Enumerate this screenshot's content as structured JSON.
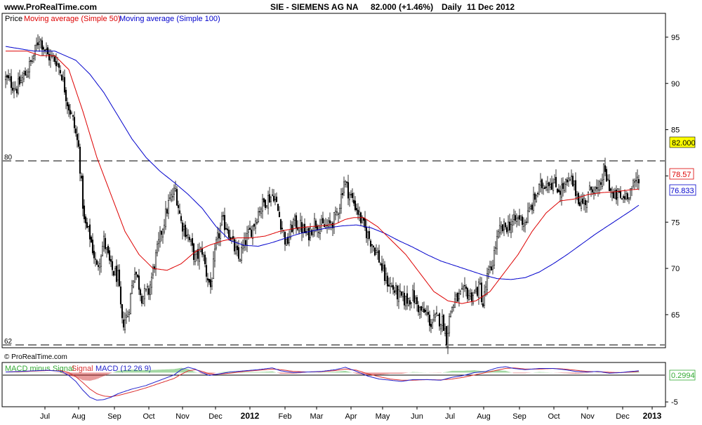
{
  "header": {
    "site": "www.ProRealTime.com",
    "instrument": "SIE - SIEMENS AG NA",
    "price_change": "82.000 (+1.46%)",
    "period": "Daily",
    "date": "11 Dec 2012"
  },
  "watermark": "© ProRealTime.com",
  "colors": {
    "candle": "#000000",
    "ma50": "#dd0000",
    "ma100": "#0000cc",
    "macd_signal": "#dd3333",
    "macd_line": "#2222cc",
    "hist_pos": "#33aa33",
    "hist_neg": "#cc2222",
    "frame": "#000000"
  },
  "chart_data": [
    {
      "type": "candlestick",
      "legend": [
        {
          "label": "Price",
          "color": "#000000"
        },
        {
          "label": "Moving average (Simple 50)",
          "color": "#dd0000"
        },
        {
          "label": "Moving average (Simple 100)",
          "color": "#0000cc"
        }
      ],
      "x_labels": [
        "Jul",
        "Aug",
        "Sep",
        "Oct",
        "Nov",
        "Dec",
        "2012",
        "Feb",
        "Mar",
        "Apr",
        "May",
        "Jun",
        "Jul",
        "Aug",
        "Sep",
        "Oct",
        "Nov",
        "Dec",
        "2013"
      ],
      "y_ticks": [
        65,
        70,
        75,
        80,
        85,
        90,
        95
      ],
      "ylim": [
        61.5,
        97.5
      ],
      "reference_lines": [
        {
          "value": 80,
          "label": "80"
        },
        {
          "value": 62,
          "label": "62"
        }
      ],
      "last_values": {
        "price": "82.000",
        "ma50": "78.57",
        "ma100": "76.833"
      },
      "price_anchors": [
        [
          0,
          90.5
        ],
        [
          8,
          89.5
        ],
        [
          14,
          91
        ],
        [
          19,
          92.5
        ],
        [
          24,
          95
        ],
        [
          30,
          93
        ],
        [
          36,
          92.5
        ],
        [
          40,
          91
        ],
        [
          44,
          88
        ],
        [
          48,
          86
        ],
        [
          52,
          83
        ],
        [
          56,
          75
        ],
        [
          60,
          73.5
        ],
        [
          65,
          70
        ],
        [
          70,
          73
        ],
        [
          75,
          70
        ],
        [
          80,
          69
        ],
        [
          83,
          64
        ],
        [
          87,
          65
        ],
        [
          92,
          70
        ],
        [
          97,
          67
        ],
        [
          102,
          67.5
        ],
        [
          106,
          70.5
        ],
        [
          111,
          74
        ],
        [
          116,
          77
        ],
        [
          121,
          78.5
        ],
        [
          125,
          75
        ],
        [
          130,
          73.5
        ],
        [
          135,
          71
        ],
        [
          140,
          72
        ],
        [
          143,
          69.5
        ],
        [
          146,
          68
        ],
        [
          150,
          72.5
        ],
        [
          154,
          75
        ],
        [
          158,
          74.5
        ],
        [
          162,
          72.5
        ],
        [
          166,
          71
        ],
        [
          171,
          73
        ],
        [
          176,
          74.5
        ],
        [
          181,
          76.5
        ],
        [
          186,
          77.5
        ],
        [
          191,
          78
        ],
        [
          196,
          75
        ],
        [
          200,
          72.5
        ],
        [
          205,
          75
        ],
        [
          210,
          74.5
        ],
        [
          215,
          73.5
        ],
        [
          220,
          75
        ],
        [
          225,
          74.5
        ],
        [
          230,
          74.5
        ],
        [
          235,
          75.5
        ],
        [
          238,
          77
        ],
        [
          241,
          79.5
        ],
        [
          245,
          78
        ],
        [
          250,
          76.5
        ],
        [
          255,
          74.5
        ],
        [
          260,
          73
        ],
        [
          265,
          71.5
        ],
        [
          270,
          69
        ],
        [
          275,
          68
        ],
        [
          280,
          67
        ],
        [
          285,
          66.5
        ],
        [
          290,
          67
        ],
        [
          295,
          65.5
        ],
        [
          300,
          65
        ],
        [
          303,
          64
        ],
        [
          306,
          64.5
        ],
        [
          310,
          64.5
        ],
        [
          312,
          64
        ],
        [
          314,
          62.5
        ],
        [
          317,
          65.5
        ],
        [
          320,
          66.5
        ],
        [
          324,
          67
        ],
        [
          328,
          67.5
        ],
        [
          331,
          67
        ],
        [
          335,
          67.5
        ],
        [
          338,
          68
        ],
        [
          340,
          66
        ],
        [
          343,
          69
        ],
        [
          346,
          70
        ],
        [
          349,
          72.5
        ],
        [
          352,
          74
        ],
        [
          356,
          74.5
        ],
        [
          362,
          75
        ],
        [
          366,
          75.5
        ],
        [
          370,
          75
        ],
        [
          374,
          76.5
        ],
        [
          378,
          78
        ],
        [
          382,
          79
        ],
        [
          387,
          79.5
        ],
        [
          391,
          79
        ],
        [
          395,
          78.5
        ],
        [
          399,
          79
        ],
        [
          403,
          79.5
        ],
        [
          407,
          78
        ],
        [
          410,
          77
        ],
        [
          414,
          77.5
        ],
        [
          418,
          79
        ],
        [
          422,
          78
        ],
        [
          426,
          80.5
        ],
        [
          430,
          79
        ],
        [
          433,
          77.5
        ],
        [
          436,
          78
        ],
        [
          439,
          77.5
        ],
        [
          442,
          78
        ],
        [
          445,
          78.5
        ],
        [
          448,
          79
        ],
        [
          451,
          80
        ],
        [
          454,
          81.5
        ]
      ],
      "ma50_anchors": [
        [
          0,
          93.5
        ],
        [
          15,
          93.5
        ],
        [
          25,
          93
        ],
        [
          35,
          93
        ],
        [
          45,
          91.5
        ],
        [
          55,
          87
        ],
        [
          65,
          82
        ],
        [
          75,
          78
        ],
        [
          85,
          74
        ],
        [
          95,
          71.5
        ],
        [
          105,
          70
        ],
        [
          115,
          69.8
        ],
        [
          125,
          70.5
        ],
        [
          135,
          71.8
        ],
        [
          145,
          72.5
        ],
        [
          155,
          73
        ],
        [
          165,
          73.3
        ],
        [
          175,
          73.3
        ],
        [
          185,
          73.5
        ],
        [
          195,
          74
        ],
        [
          205,
          74.3
        ],
        [
          215,
          74.5
        ],
        [
          225,
          74.6
        ],
        [
          235,
          74.8
        ],
        [
          242,
          75.3
        ],
        [
          248,
          75.5
        ],
        [
          255,
          75.5
        ],
        [
          265,
          74.5
        ],
        [
          275,
          73
        ],
        [
          285,
          71.5
        ],
        [
          295,
          69.5
        ],
        [
          305,
          67.5
        ],
        [
          315,
          66.5
        ],
        [
          325,
          66.2
        ],
        [
          335,
          66.5
        ],
        [
          345,
          67.5
        ],
        [
          355,
          69.5
        ],
        [
          365,
          71.5
        ],
        [
          375,
          74
        ],
        [
          385,
          76
        ],
        [
          395,
          77.3
        ],
        [
          405,
          77.5
        ],
        [
          415,
          78
        ],
        [
          425,
          78.2
        ],
        [
          435,
          78.3
        ],
        [
          445,
          78.5
        ],
        [
          451,
          78.57
        ]
      ],
      "ma100_anchors": [
        [
          0,
          94
        ],
        [
          20,
          93.5
        ],
        [
          35,
          93.5
        ],
        [
          50,
          92.5
        ],
        [
          60,
          91
        ],
        [
          70,
          89
        ],
        [
          80,
          86.5
        ],
        [
          90,
          84
        ],
        [
          100,
          82
        ],
        [
          110,
          80.5
        ],
        [
          120,
          79.3
        ],
        [
          130,
          78
        ],
        [
          140,
          76.5
        ],
        [
          150,
          74.5
        ],
        [
          160,
          73
        ],
        [
          170,
          72.5
        ],
        [
          180,
          72.4
        ],
        [
          190,
          72.8
        ],
        [
          200,
          73.3
        ],
        [
          210,
          73.8
        ],
        [
          220,
          74.1
        ],
        [
          230,
          74.4
        ],
        [
          240,
          74.6
        ],
        [
          250,
          74.7
        ],
        [
          260,
          74.4
        ],
        [
          270,
          73.8
        ],
        [
          280,
          73
        ],
        [
          290,
          72.3
        ],
        [
          300,
          71.5
        ],
        [
          310,
          70.8
        ],
        [
          320,
          70.3
        ],
        [
          330,
          69.8
        ],
        [
          340,
          69.3
        ],
        [
          350,
          68.9
        ],
        [
          360,
          68.8
        ],
        [
          370,
          69
        ],
        [
          380,
          69.6
        ],
        [
          390,
          70.5
        ],
        [
          400,
          71.5
        ],
        [
          410,
          72.6
        ],
        [
          420,
          73.7
        ],
        [
          430,
          74.7
        ],
        [
          440,
          75.7
        ],
        [
          445,
          76.2
        ],
        [
          451,
          76.833
        ]
      ]
    },
    {
      "type": "macd",
      "legend": [
        {
          "label": "MACD minus Signal",
          "color": "#33aa33"
        },
        {
          "label": "Signal",
          "color": "#dd3333"
        },
        {
          "label": "MACD (12 26 9)",
          "color": "#2222cc"
        }
      ],
      "y_ticks": [
        -5
      ],
      "ylim": [
        -5.7,
        1.6
      ],
      "last_value": "0.2994",
      "macd_anchors": [
        [
          0,
          0.1
        ],
        [
          10,
          0.2
        ],
        [
          20,
          0.3
        ],
        [
          30,
          0.4
        ],
        [
          40,
          0.2
        ],
        [
          45,
          -0.5
        ],
        [
          50,
          -1.5
        ],
        [
          55,
          -3
        ],
        [
          60,
          -4.2
        ],
        [
          65,
          -4.7
        ],
        [
          70,
          -4.6
        ],
        [
          75,
          -4.2
        ],
        [
          80,
          -3.6
        ],
        [
          90,
          -2.8
        ],
        [
          100,
          -2.2
        ],
        [
          110,
          -1.3
        ],
        [
          120,
          -0.4
        ],
        [
          125,
          0.5
        ],
        [
          130,
          0.9
        ],
        [
          135,
          0.6
        ],
        [
          140,
          0
        ],
        [
          145,
          -0.5
        ],
        [
          150,
          -0.3
        ],
        [
          160,
          0.1
        ],
        [
          170,
          0.3
        ],
        [
          180,
          0.5
        ],
        [
          190,
          0.8
        ],
        [
          196,
          0.3
        ],
        [
          205,
          0
        ],
        [
          215,
          0.1
        ],
        [
          225,
          0.2
        ],
        [
          235,
          0.5
        ],
        [
          242,
          0.9
        ],
        [
          250,
          0.2
        ],
        [
          258,
          -0.6
        ],
        [
          266,
          -1.1
        ],
        [
          274,
          -1.3
        ],
        [
          282,
          -1.5
        ],
        [
          290,
          -1.2
        ],
        [
          300,
          -1.2
        ],
        [
          310,
          -1.3
        ],
        [
          318,
          -0.8
        ],
        [
          326,
          -0.5
        ],
        [
          334,
          0
        ],
        [
          342,
          0.2
        ],
        [
          350,
          0.8
        ],
        [
          356,
          1
        ],
        [
          362,
          0.7
        ],
        [
          370,
          0.5
        ],
        [
          380,
          0.7
        ],
        [
          390,
          0.7
        ],
        [
          398,
          0.5
        ],
        [
          406,
          0.2
        ],
        [
          414,
          0.1
        ],
        [
          422,
          0.2
        ],
        [
          430,
          -0.1
        ],
        [
          438,
          0
        ],
        [
          446,
          0.2
        ],
        [
          451,
          0.3
        ]
      ],
      "signal_anchors": [
        [
          0,
          0.1
        ],
        [
          10,
          0.15
        ],
        [
          20,
          0.25
        ],
        [
          30,
          0.35
        ],
        [
          40,
          0.3
        ],
        [
          45,
          0
        ],
        [
          50,
          -0.7
        ],
        [
          55,
          -1.7
        ],
        [
          60,
          -2.8
        ],
        [
          65,
          -3.6
        ],
        [
          70,
          -4
        ],
        [
          75,
          -4.1
        ],
        [
          80,
          -3.9
        ],
        [
          90,
          -3.3
        ],
        [
          100,
          -2.6
        ],
        [
          110,
          -1.8
        ],
        [
          120,
          -1
        ],
        [
          125,
          -0.3
        ],
        [
          130,
          0.3
        ],
        [
          135,
          0.5
        ],
        [
          140,
          0.2
        ],
        [
          145,
          -0.2
        ],
        [
          150,
          -0.3
        ],
        [
          160,
          -0.1
        ],
        [
          170,
          0.2
        ],
        [
          180,
          0.4
        ],
        [
          190,
          0.6
        ],
        [
          196,
          0.5
        ],
        [
          205,
          0.2
        ],
        [
          215,
          0.1
        ],
        [
          225,
          0.15
        ],
        [
          235,
          0.35
        ],
        [
          242,
          0.6
        ],
        [
          250,
          0.4
        ],
        [
          258,
          -0.2
        ],
        [
          266,
          -0.7
        ],
        [
          274,
          -1.1
        ],
        [
          282,
          -1.3
        ],
        [
          290,
          -1.3
        ],
        [
          300,
          -1.2
        ],
        [
          310,
          -1.25
        ],
        [
          318,
          -1.1
        ],
        [
          326,
          -0.8
        ],
        [
          334,
          -0.4
        ],
        [
          342,
          0
        ],
        [
          350,
          0.4
        ],
        [
          356,
          0.7
        ],
        [
          362,
          0.8
        ],
        [
          370,
          0.6
        ],
        [
          380,
          0.6
        ],
        [
          390,
          0.7
        ],
        [
          398,
          0.6
        ],
        [
          406,
          0.4
        ],
        [
          414,
          0.2
        ],
        [
          422,
          0.15
        ],
        [
          430,
          0.05
        ],
        [
          438,
          0
        ],
        [
          446,
          0.1
        ],
        [
          451,
          0.2
        ]
      ]
    }
  ]
}
